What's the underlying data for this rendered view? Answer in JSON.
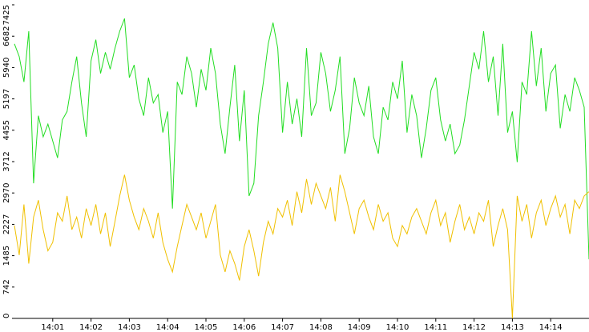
{
  "chart_data": {
    "type": "line",
    "x": [
      0,
      0.125,
      0.25,
      0.375,
      0.5,
      0.625,
      0.75,
      0.875,
      1,
      1.125,
      1.25,
      1.375,
      1.5,
      1.625,
      1.75,
      1.875,
      2,
      2.125,
      2.25,
      2.375,
      2.5,
      2.625,
      2.75,
      2.875,
      3,
      3.125,
      3.25,
      3.375,
      3.5,
      3.625,
      3.75,
      3.875,
      4,
      4.125,
      4.25,
      4.375,
      4.5,
      4.625,
      4.75,
      4.875,
      5,
      5.125,
      5.25,
      5.375,
      5.5,
      5.625,
      5.75,
      5.875,
      6,
      6.125,
      6.25,
      6.375,
      6.5,
      6.625,
      6.75,
      6.875,
      7,
      7.125,
      7.25,
      7.375,
      7.5,
      7.625,
      7.75,
      7.875,
      8,
      8.125,
      8.25,
      8.375,
      8.5,
      8.625,
      8.75,
      8.875,
      9,
      9.125,
      9.25,
      9.375,
      9.5,
      9.625,
      9.75,
      9.875,
      10,
      10.125,
      10.25,
      10.375,
      10.5,
      10.625,
      10.75,
      10.875,
      11,
      11.125,
      11.25,
      11.375,
      11.5,
      11.625,
      11.75,
      11.875,
      12,
      12.125,
      12.25,
      12.375,
      12.5,
      12.625,
      12.75,
      12.875,
      13,
      13.125,
      13.25,
      13.375,
      13.5,
      13.625,
      13.75,
      13.875,
      14,
      14.125,
      14.25,
      14.375,
      14.5,
      14.625,
      14.75,
      14.875,
      15
    ],
    "series": [
      {
        "color": "#22dd22",
        "values": [
          6500,
          6200,
          5600,
          6800,
          3200,
          4800,
          4300,
          4600,
          4200,
          3800,
          4700,
          4900,
          5600,
          6200,
          5100,
          4300,
          6100,
          6600,
          5800,
          6300,
          5900,
          6400,
          6800,
          7100,
          5700,
          6000,
          5200,
          4800,
          5700,
          5100,
          5300,
          4400,
          4900,
          2600,
          5600,
          5300,
          6200,
          5800,
          5000,
          5900,
          5400,
          6400,
          5800,
          4600,
          3900,
          5000,
          6000,
          4200,
          5400,
          2900,
          3200,
          4800,
          5600,
          6500,
          7000,
          6400,
          4400,
          5600,
          4600,
          5200,
          4300,
          6400,
          4800,
          5100,
          6300,
          5800,
          4900,
          5400,
          6200,
          3900,
          4500,
          5700,
          5100,
          4800,
          5500,
          4300,
          3900,
          5000,
          4700,
          5600,
          5200,
          6100,
          4400,
          5300,
          4800,
          3800,
          4500,
          5400,
          5700,
          4700,
          4200,
          4600,
          3900,
          4100,
          4700,
          5500,
          6300,
          5900,
          6800,
          5600,
          6200,
          4800,
          6500,
          4400,
          4900,
          3700,
          5600,
          5300,
          6800,
          5500,
          6400,
          4900,
          5800,
          6000,
          4500,
          5300,
          4900,
          5700,
          5400,
          5000,
          1400
        ]
      },
      {
        "color": "#f0c000",
        "values": [
          2200,
          1500,
          2700,
          1300,
          2400,
          2800,
          2100,
          1600,
          1800,
          2500,
          2300,
          2900,
          2100,
          2400,
          1900,
          2600,
          2200,
          2700,
          2000,
          2500,
          1700,
          2300,
          2900,
          3400,
          2800,
          2400,
          2100,
          2600,
          2300,
          1900,
          2500,
          1800,
          1400,
          1100,
          1700,
          2200,
          2700,
          2400,
          2100,
          2500,
          1900,
          2300,
          2700,
          1500,
          1100,
          1600,
          1300,
          900,
          1700,
          2100,
          1600,
          1000,
          1800,
          2300,
          2000,
          2600,
          2400,
          2800,
          2200,
          3000,
          2500,
          3300,
          2700,
          3200,
          2900,
          2600,
          3100,
          2300,
          3400,
          3000,
          2500,
          2000,
          2600,
          2800,
          2400,
          2100,
          2700,
          2300,
          2500,
          1900,
          1700,
          2200,
          2000,
          2400,
          2600,
          2300,
          2000,
          2500,
          2800,
          2200,
          2500,
          1800,
          2300,
          2700,
          2100,
          2400,
          2000,
          2500,
          2300,
          2800,
          1700,
          2200,
          2600,
          2100,
          0,
          2900,
          2300,
          2700,
          1900,
          2500,
          2800,
          2200,
          2600,
          2900,
          2400,
          2700,
          2000,
          2800,
          2600,
          2900,
          3000
        ]
      }
    ],
    "xlim": [
      0,
      15
    ],
    "xticks": [
      {
        "value": 1,
        "label": "14:01"
      },
      {
        "value": 2,
        "label": "14:02"
      },
      {
        "value": 3,
        "label": "14:03"
      },
      {
        "value": 4,
        "label": "14:04"
      },
      {
        "value": 5,
        "label": "14:05"
      },
      {
        "value": 6,
        "label": "14:06"
      },
      {
        "value": 7,
        "label": "14:07"
      },
      {
        "value": 8,
        "label": "14:08"
      },
      {
        "value": 9,
        "label": "14:09"
      },
      {
        "value": 10,
        "label": "14:10"
      },
      {
        "value": 11,
        "label": "14:11"
      },
      {
        "value": 12,
        "label": "14:12"
      },
      {
        "value": 13,
        "label": "14:13"
      },
      {
        "value": 14,
        "label": "14:14"
      }
    ],
    "ylim": [
      0,
      7425
    ],
    "yticks": [
      0,
      742,
      1485,
      2227,
      2970,
      3712,
      4455,
      5197,
      5940,
      6682,
      7425
    ]
  }
}
